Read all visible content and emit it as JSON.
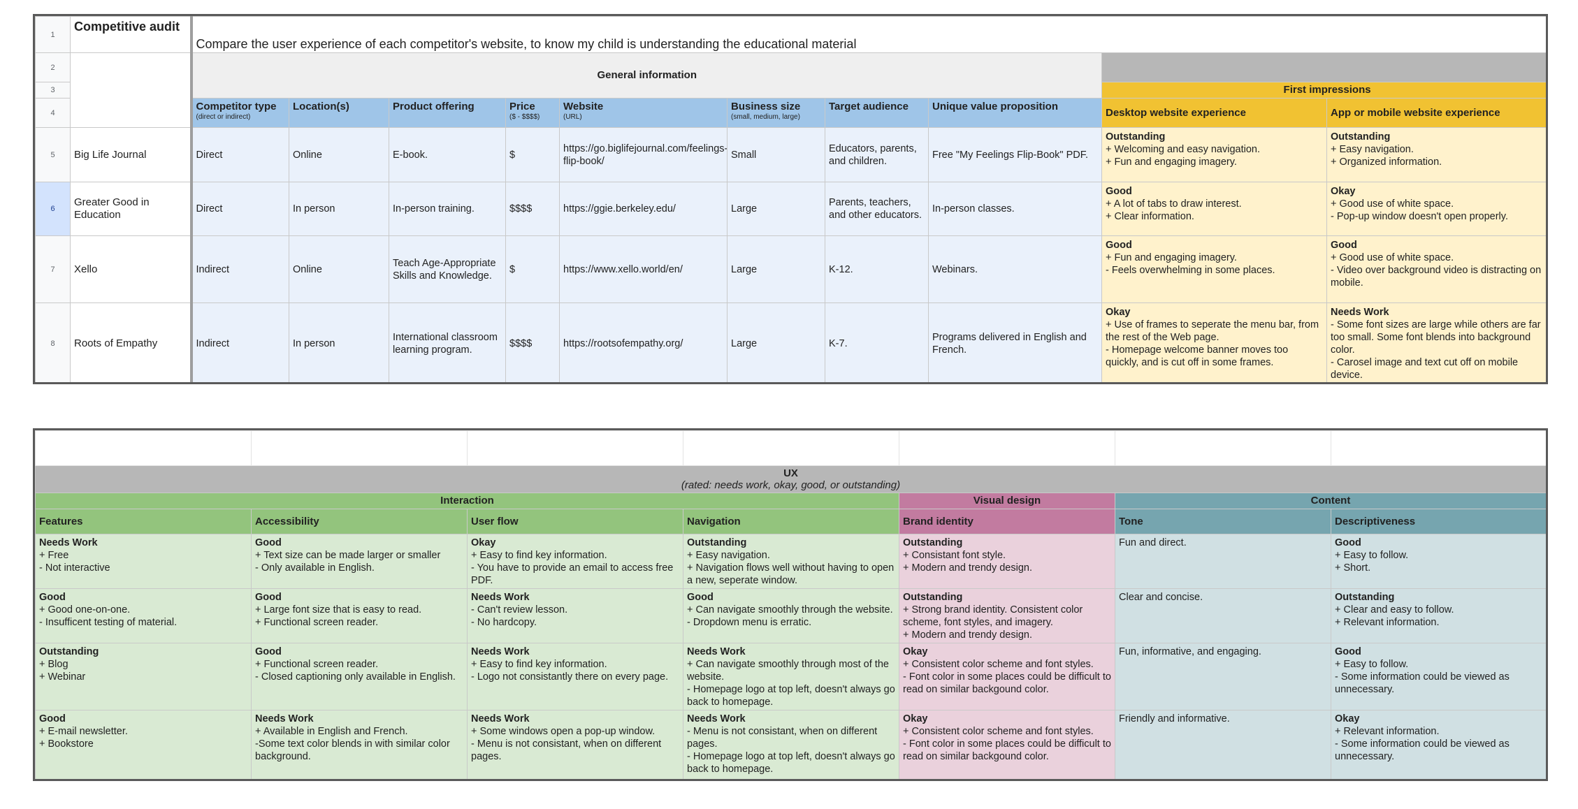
{
  "top": {
    "row_numbers": [
      "1",
      "2",
      "3",
      "4",
      "5",
      "6",
      "7",
      "8"
    ],
    "title": "Competitive audit",
    "subtitle": "Compare the user experience of each competitor's website, to know my child is understanding the educational material",
    "general_information": "General information",
    "first_impressions": "First impressions",
    "headers": {
      "competitor_type": "Competitor type",
      "competitor_type_note": "(direct or indirect)",
      "locations": "Location(s)",
      "product_offering": "Product offering",
      "price": "Price",
      "price_note": "($ - $$$$)",
      "website": "Website",
      "website_note": "(URL)",
      "business_size": "Business size",
      "business_size_note": "(small, medium, large)",
      "target_audience": "Target audience",
      "uvp": "Unique value proposition",
      "desktop": "Desktop website experience",
      "mobile": "App or mobile website experience"
    },
    "rows": [
      {
        "name": "Big Life Journal",
        "type": "Direct",
        "location": "Online",
        "product": "E-book.",
        "price": "$",
        "website": "https://go.biglifejournal.com/feelings-flip-book/",
        "size": "Small",
        "audience": "Educators, parents, and children.",
        "uvp": "Free \"My Feelings Flip-Book\" PDF.",
        "desktop_rating": "Outstanding",
        "desktop_lines": [
          "+ Welcoming and easy navigation.",
          "+ Fun and engaging imagery."
        ],
        "mobile_rating": "Outstanding",
        "mobile_lines": [
          "+ Easy navigation.",
          "+ Organized information."
        ]
      },
      {
        "name": "Greater Good in Education",
        "type": "Direct",
        "location": "In person",
        "product": "In-person training.",
        "price": "$$$$",
        "website": "https://ggie.berkeley.edu/",
        "size": "Large",
        "audience": "Parents, teachers, and other educators.",
        "uvp": "In-person classes.",
        "desktop_rating": "Good",
        "desktop_lines": [
          "+ A lot of tabs to draw interest.",
          "+ Clear information."
        ],
        "mobile_rating": "Okay",
        "mobile_lines": [
          "+ Good use of white space.",
          "- Pop-up window doesn't open properly."
        ]
      },
      {
        "name": "Xello",
        "type": "Indirect",
        "location": "Online",
        "product": "Teach Age-Appropriate Skills and Knowledge.",
        "price": "$",
        "website": "https://www.xello.world/en/",
        "size": "Large",
        "audience": "K-12.",
        "uvp": "Webinars.",
        "desktop_rating": "Good",
        "desktop_lines": [
          "+ Fun and engaging imagery.",
          "- Feels overwhelming in some places."
        ],
        "mobile_rating": "Good",
        "mobile_lines": [
          "+ Good use of white space.",
          "- Video over background video is distracting on mobile."
        ]
      },
      {
        "name": "Roots of Empathy",
        "type": "Indirect",
        "location": "In person",
        "product": "International classroom learning program.",
        "price": "$$$$",
        "website": "https://rootsofempathy.org/",
        "size": "Large",
        "audience": "K-7.",
        "uvp": "Programs delivered in English and French.",
        "desktop_rating": "Okay",
        "desktop_lines": [
          "+ Use of frames to seperate the menu bar, from the rest of the Web page.",
          "- Homepage welcome banner moves too quickly, and is cut off in some frames."
        ],
        "mobile_rating": "Needs Work",
        "mobile_lines": [
          "- Some font sizes are large while others are far too small. Some font blends into background color.",
          "- Carosel image and text cut off on mobile device."
        ]
      }
    ]
  },
  "bottom": {
    "ux_title": "UX",
    "ux_subtitle": "(rated: needs work, okay, good, or outstanding)",
    "groups": {
      "interaction": "Interaction",
      "visual_design": "Visual design",
      "content": "Content"
    },
    "headers": {
      "features": "Features",
      "accessibility": "Accessibility",
      "user_flow": "User flow",
      "navigation": "Navigation",
      "brand_identity": "Brand identity",
      "tone": "Tone",
      "descriptiveness": "Descriptiveness"
    },
    "rows": [
      {
        "features": {
          "rating": "Needs Work",
          "lines": [
            "+ Free",
            "- Not interactive"
          ]
        },
        "accessibility": {
          "rating": "Good",
          "lines": [
            "+ Text size can be made larger or smaller",
            "- Only available in English."
          ]
        },
        "user_flow": {
          "rating": "Okay",
          "lines": [
            "+ Easy to find key information.",
            "- You have to provide an email to access free PDF."
          ]
        },
        "navigation": {
          "rating": "Outstanding",
          "lines": [
            "+ Easy navigation.",
            "+ Navigation flows well without having to open a new, seperate window."
          ]
        },
        "brand": {
          "rating": "Outstanding",
          "lines": [
            "+ Consistant font style.",
            "+ Modern and trendy design."
          ]
        },
        "tone": {
          "rating": "",
          "lines": [
            "Fun and direct."
          ]
        },
        "descriptiveness": {
          "rating": "Good",
          "lines": [
            "+ Easy to follow.",
            "+ Short."
          ]
        }
      },
      {
        "features": {
          "rating": "Good",
          "lines": [
            "+ Good one-on-one.",
            "- Insufficent testing of material."
          ]
        },
        "accessibility": {
          "rating": "Good",
          "lines": [
            "+ Large font size that is easy to read.",
            "+ Functional screen reader."
          ]
        },
        "user_flow": {
          "rating": "Needs Work",
          "lines": [
            "- Can't review lesson.",
            "- No hardcopy."
          ]
        },
        "navigation": {
          "rating": "Good",
          "lines": [
            "+ Can navigate smoothly through the website.",
            "- Dropdown menu is erratic."
          ]
        },
        "brand": {
          "rating": "Outstanding",
          "lines": [
            "+ Strong brand identity. Consistent color scheme, font styles, and imagery.",
            "+ Modern and trendy design."
          ]
        },
        "tone": {
          "rating": "",
          "lines": [
            "Clear and concise."
          ]
        },
        "descriptiveness": {
          "rating": "Outstanding",
          "lines": [
            "+ Clear and easy to follow.",
            "+ Relevant information."
          ]
        }
      },
      {
        "features": {
          "rating": "Outstanding",
          "lines": [
            "+ Blog",
            "+ Webinar"
          ]
        },
        "accessibility": {
          "rating": "Good",
          "lines": [
            "+ Functional screen reader.",
            "- Closed captioning only available in English."
          ]
        },
        "user_flow": {
          "rating": "Needs Work",
          "lines": [
            "+ Easy to find key information.",
            "- Logo not consistantly there on every page."
          ]
        },
        "navigation": {
          "rating": "Needs Work",
          "lines": [
            "+ Can navigate smoothly through most of the website.",
            "- Homepage logo at top left, doesn't always go back to homepage."
          ]
        },
        "brand": {
          "rating": "Okay",
          "lines": [
            "+ Consistent color scheme and font styles.",
            "- Font color in some places could be difficult to read on similar backgound color."
          ]
        },
        "tone": {
          "rating": "",
          "lines": [
            "Fun, informative, and engaging."
          ]
        },
        "descriptiveness": {
          "rating": "Good",
          "lines": [
            "+ Easy to follow.",
            "- Some information could be viewed as unnecessary."
          ]
        }
      },
      {
        "features": {
          "rating": "Good",
          "lines": [
            "+ E-mail newsletter.",
            "+ Bookstore"
          ]
        },
        "accessibility": {
          "rating": "Needs Work",
          "lines": [
            "+ Available in English and French.",
            "-Some text color blends in with similar color background."
          ]
        },
        "user_flow": {
          "rating": "Needs Work",
          "lines": [
            "+ Some windows open a pop-up window.",
            "- Menu is not consistant, when on different pages."
          ]
        },
        "navigation": {
          "rating": "Needs Work",
          "lines": [
            "- Menu is not consistant, when on different pages.",
            "- Homepage logo at top left, doesn't always go back to homepage."
          ]
        },
        "brand": {
          "rating": "Okay",
          "lines": [
            "+ Consistent color scheme and font styles.",
            "- Font color in some places could be difficult to read on similar backgound color."
          ]
        },
        "tone": {
          "rating": "",
          "lines": [
            "Friendly and informative."
          ]
        },
        "descriptiveness": {
          "rating": "Okay",
          "lines": [
            "+ Relevant information.",
            "- Some information could be viewed as unnecessary."
          ]
        }
      }
    ]
  }
}
